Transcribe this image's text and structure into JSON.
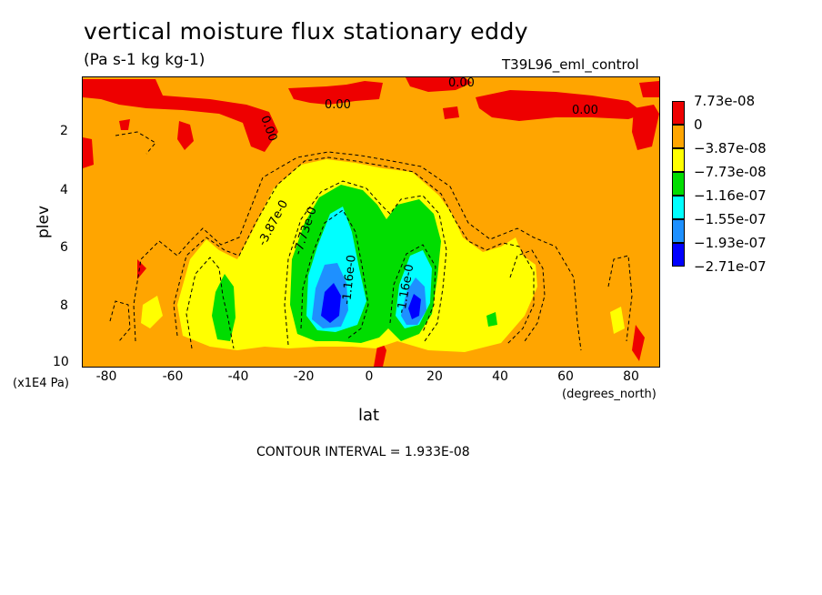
{
  "chart_data": {
    "type": "heatmap",
    "title": "vertical moisture flux stationary eddy",
    "subtitle": "(Pa s-1 kg kg-1)",
    "dataset": "T39L96_eml_control",
    "xlabel": "lat",
    "ylabel": "plev",
    "x_units": "(degrees_north)",
    "y_units": "(x1E4 Pa)",
    "xlim": [
      -88,
      88
    ],
    "ylim": [
      0.2,
      10
    ],
    "y_reversed": true,
    "x_ticks": [
      "-80",
      "-60",
      "-40",
      "-20",
      "0",
      "20",
      "40",
      "60",
      "80"
    ],
    "y_ticks": [
      "2",
      "4",
      "6",
      "8",
      "10"
    ],
    "contour_interval_label": "CONTOUR INTERVAL = 1.933E-08",
    "legend": {
      "labels": [
        "7.73e-08",
        "0",
        "−3.87e-08",
        "−7.73e-08",
        "−1.16e-07",
        "−1.55e-07",
        "−1.93e-07",
        "−2.71e-07"
      ],
      "colors": [
        "#ee0000",
        "#ffa500",
        "#ffff00",
        "#00dd00",
        "#00ffff",
        "#1e90ff",
        "#0000ff"
      ]
    },
    "contour_labels": [
      "0.00",
      "0.00",
      "0.00",
      "0.00",
      "-3.87e-0",
      "-7.73e-0",
      "-1.16e-0",
      "-1.16e-0"
    ],
    "background_color": "#ffa500"
  }
}
